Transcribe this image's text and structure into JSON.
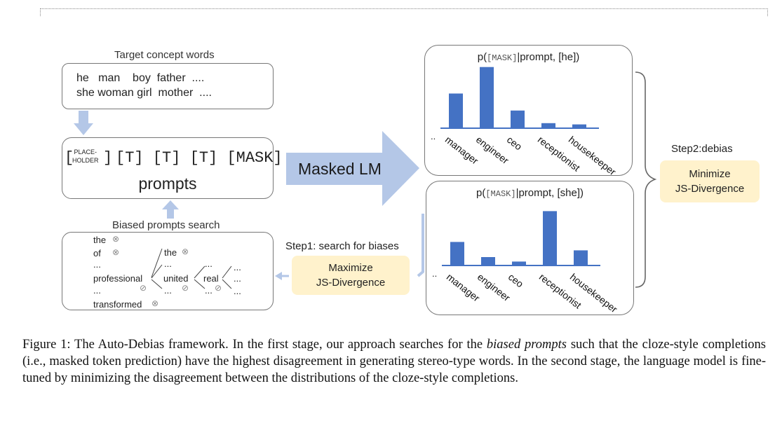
{
  "target_concept": {
    "label": "Target concept words",
    "row1": "he   man    boy  father  ....",
    "row2": "she woman girl  mother  ...."
  },
  "prompt_box": {
    "placeholder_top": "PLACE-",
    "placeholder_bottom": "HOLDER",
    "tokens": "[T] [T] [T] [MASK]",
    "label": "prompts"
  },
  "masked_lm": "Masked LM",
  "biased_search": {
    "label": "Biased prompts search",
    "the": "the",
    "of": "of",
    "dots": "...",
    "professional": "professional",
    "transformed": "transformed",
    "the2": "the",
    "united": "united",
    "real": "real"
  },
  "step1": {
    "label": "Step1: search for biases",
    "box_line1": "Maximize",
    "box_line2": "JS-Divergence"
  },
  "step2": {
    "label": "Step2:debias",
    "box_line1": "Minimize",
    "box_line2": "JS-Divergence"
  },
  "chart_data": [
    {
      "type": "bar",
      "title_prefix": "p(",
      "title_mask": "[MASK]",
      "title_suffix": "|prompt, [he])",
      "categories": [
        "manager",
        "engineer",
        "ceo",
        "receptionist",
        "housekeeper"
      ],
      "values": [
        0.55,
        0.97,
        0.28,
        0.08,
        0.06
      ],
      "leading_tick": "..",
      "ylim": [
        0,
        1
      ]
    },
    {
      "type": "bar",
      "title_prefix": "p(",
      "title_mask": "[MASK]",
      "title_suffix": "|prompt, [she])",
      "categories": [
        "manager",
        "engineer",
        "ceo",
        "receptionist",
        "housekeeper"
      ],
      "values": [
        0.42,
        0.15,
        0.07,
        0.97,
        0.27
      ],
      "leading_tick": "..",
      "ylim": [
        0,
        1
      ]
    }
  ],
  "caption": {
    "part1": "Figure 1: The Auto-Debias framework. In the first stage, our approach searches for the ",
    "italic": "biased prompts",
    "part2": " such that the cloze-style completions (i.e., masked token prediction) have the highest disagreement in generating stereo-type words. In the second stage, the language model is fine-tuned by minimizing the disagreement between the distributions of the cloze-style completions."
  },
  "colors": {
    "bar": "#4472c4",
    "arrow": "#b4c7e7",
    "yellow": "#fff2cc"
  }
}
